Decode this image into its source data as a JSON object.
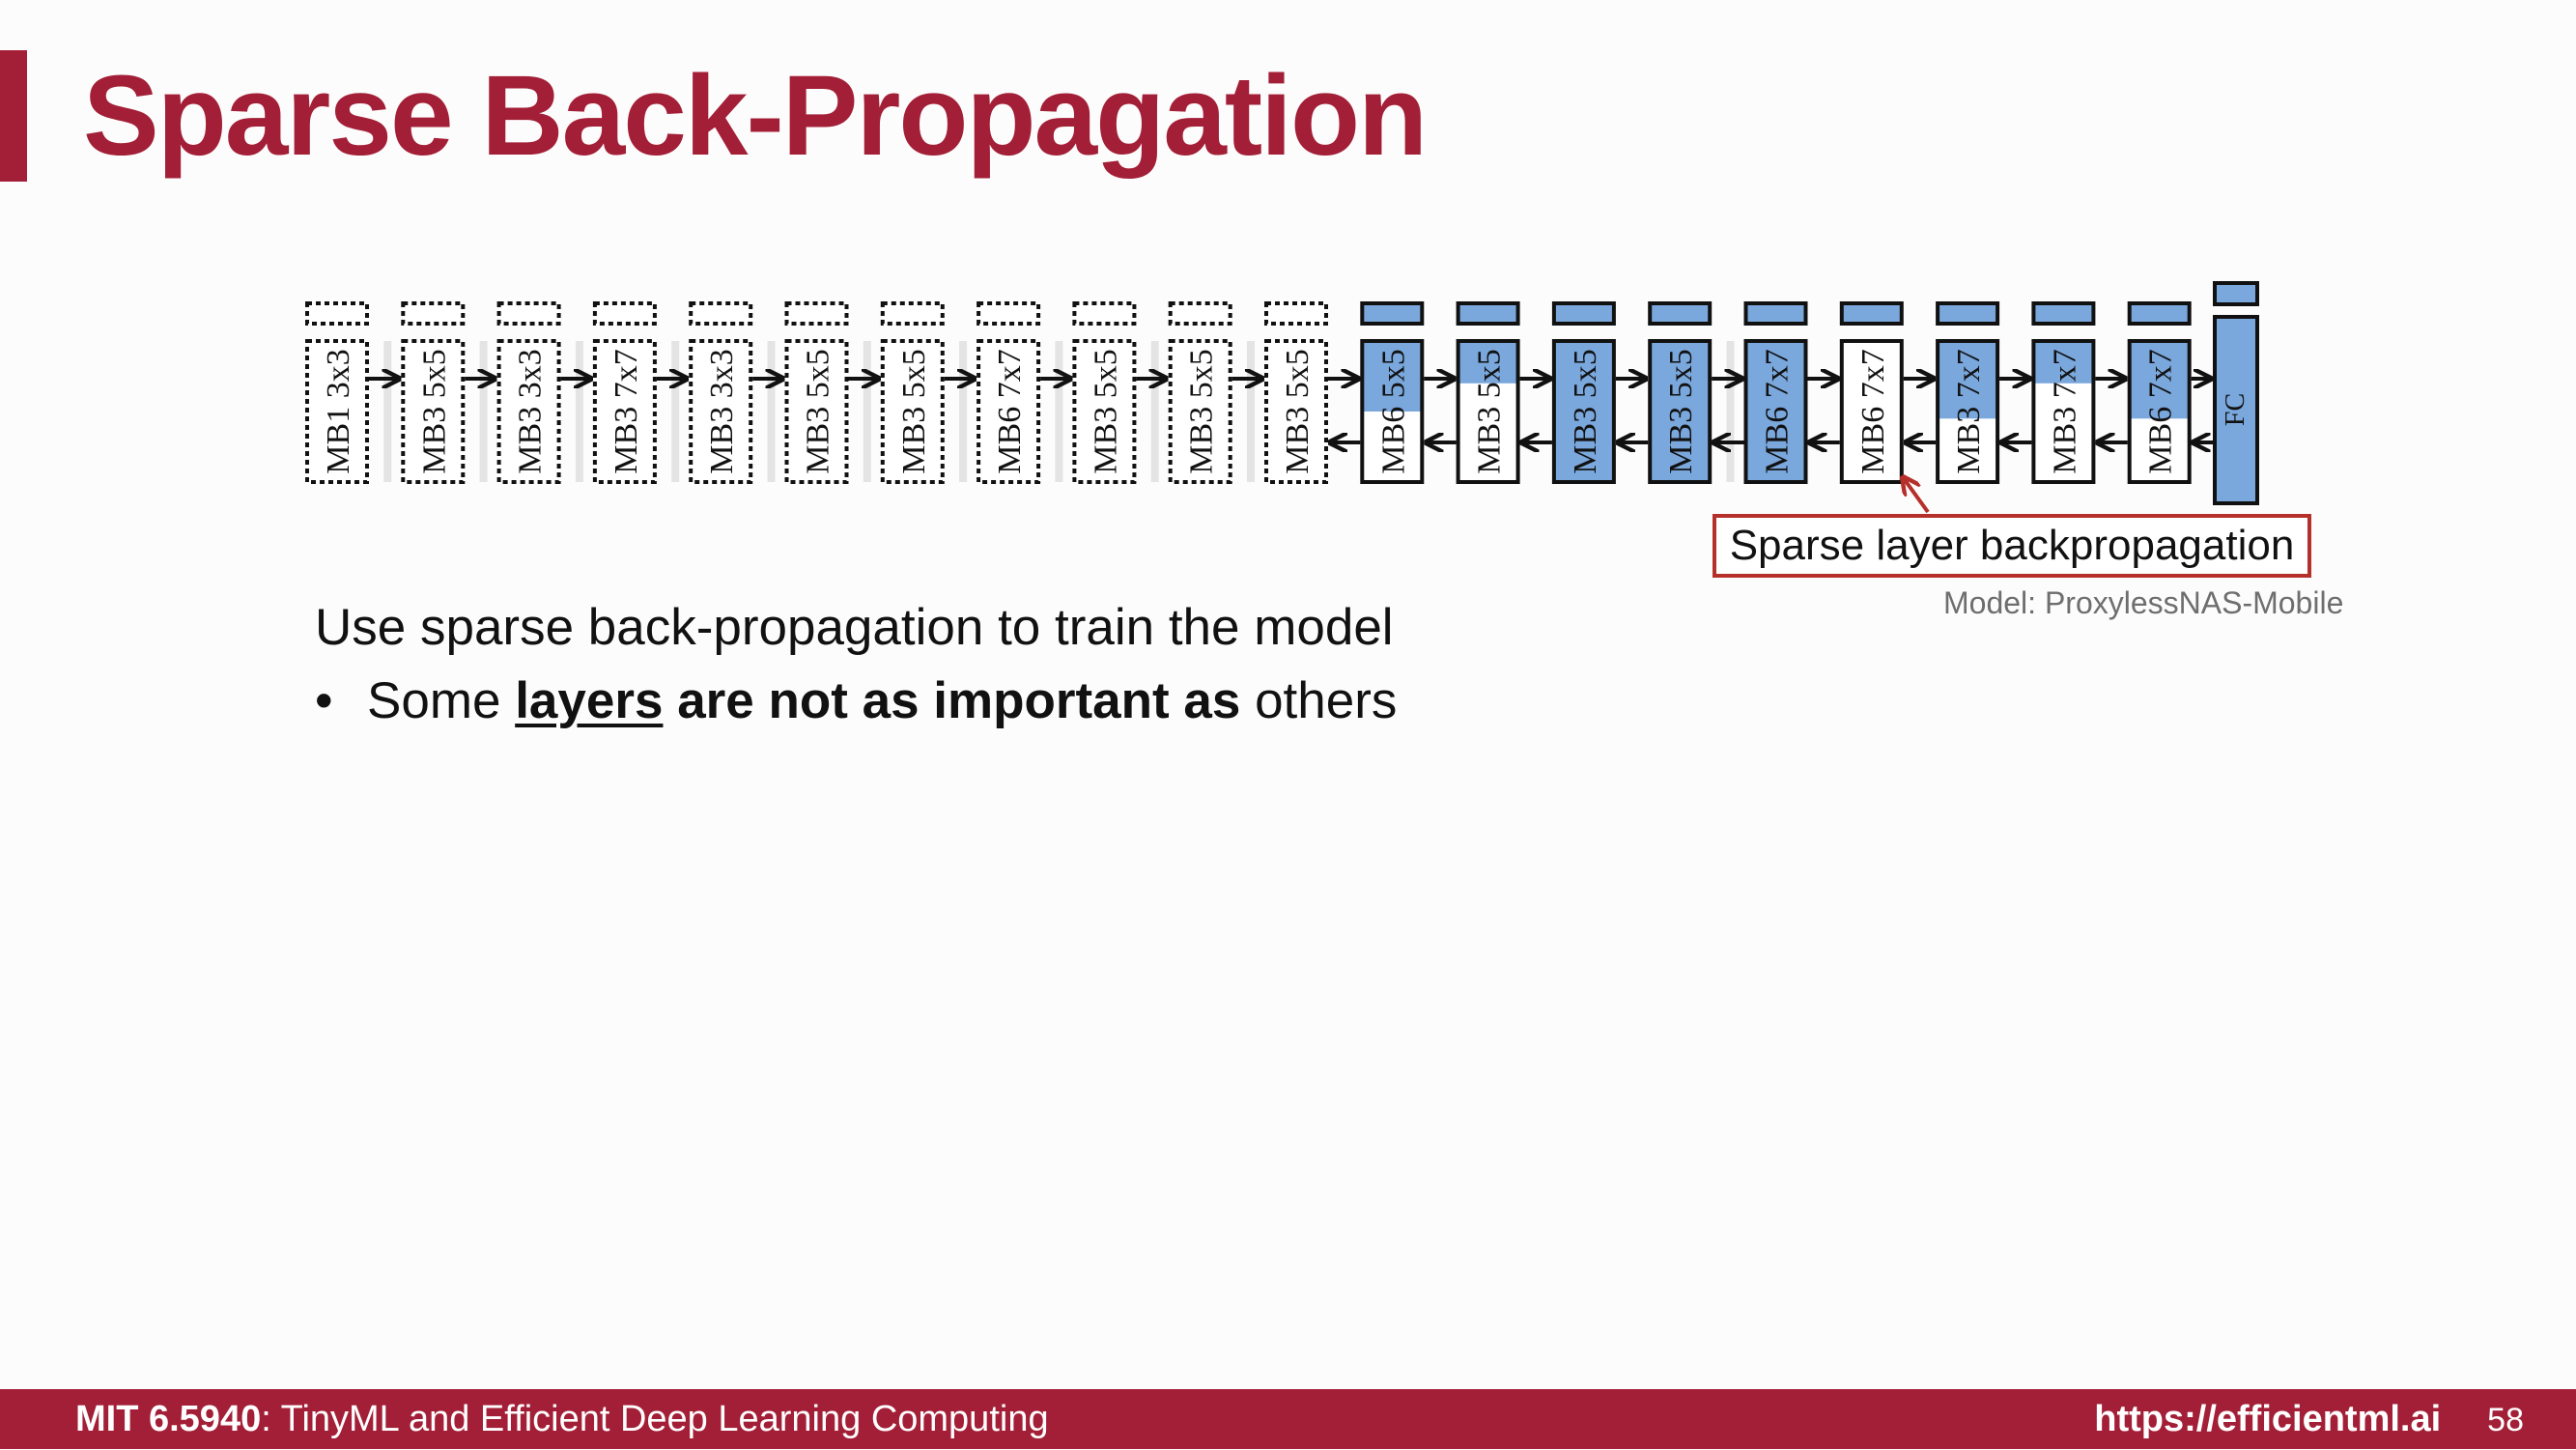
{
  "title": "Sparse Back-Propagation",
  "diagram": {
    "frozen_blocks": [
      "MB1 3x3",
      "MB3 5x5",
      "MB3 3x3",
      "MB3 7x7",
      "MB3 3x3",
      "MB3 5x5",
      "MB3 5x5",
      "MB6 7x7",
      "MB3 5x5",
      "MB3 5x5",
      "MB3 5x5"
    ],
    "trained_blocks": [
      {
        "label": "MB6 5x5",
        "update_fraction": 0.5
      },
      {
        "label": "MB3 5x5",
        "update_fraction": 0.3
      },
      {
        "label": "MB3 5x5",
        "update_fraction": 1.0
      },
      {
        "label": "MB3 5x5",
        "update_fraction": 1.0
      },
      {
        "label": "MB6 7x7",
        "update_fraction": 1.0
      },
      {
        "label": "MB6 7x7",
        "update_fraction": 0.0
      },
      {
        "label": "MB3 7x7",
        "update_fraction": 0.55
      },
      {
        "label": "MB3 7x7",
        "update_fraction": 0.3
      },
      {
        "label": "MB6 7x7",
        "update_fraction": 0.55
      }
    ],
    "head": "FC",
    "callout": "Sparse layer backpropagation",
    "model_note": "Model: ProxylessNAS-Mobile",
    "colors": {
      "trained_fill": "#7aa7dc",
      "callout_border": "#b5302a"
    }
  },
  "text": {
    "heading": "Use sparse back-propagation to train the model",
    "bullet": {
      "marker": "•",
      "prefix": "Some",
      "underlined": "layers",
      "bold": "are not as important as",
      "suffix": "others"
    }
  },
  "footer": {
    "course_code": "MIT 6.5940",
    "course_name": ": TinyML and Efficient Deep Learning Computing",
    "url": "https://efficientml.ai",
    "page": "58"
  }
}
